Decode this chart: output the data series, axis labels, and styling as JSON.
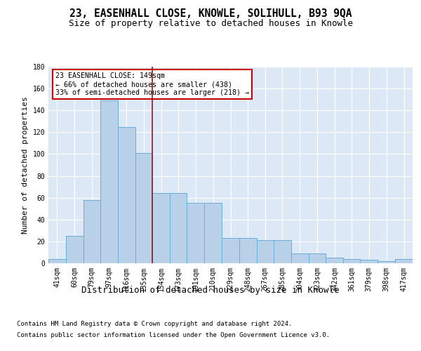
{
  "title": "23, EASENHALL CLOSE, KNOWLE, SOLIHULL, B93 9QA",
  "subtitle": "Size of property relative to detached houses in Knowle",
  "xlabel": "Distribution of detached houses by size in Knowle",
  "ylabel": "Number of detached properties",
  "categories": [
    "41sqm",
    "60sqm",
    "79sqm",
    "97sqm",
    "116sqm",
    "135sqm",
    "154sqm",
    "173sqm",
    "191sqm",
    "210sqm",
    "229sqm",
    "248sqm",
    "267sqm",
    "285sqm",
    "304sqm",
    "323sqm",
    "342sqm",
    "361sqm",
    "379sqm",
    "398sqm",
    "417sqm"
  ],
  "bar_heights": [
    4,
    25,
    58,
    149,
    125,
    101,
    64,
    64,
    55,
    55,
    23,
    23,
    21,
    21,
    9,
    9,
    5,
    4,
    3,
    2,
    4
  ],
  "bar_bins": [
    41,
    60,
    79,
    97,
    116,
    135,
    154,
    173,
    191,
    210,
    229,
    248,
    267,
    285,
    304,
    323,
    342,
    361,
    379,
    398,
    417,
    436
  ],
  "bar_color": "#b8d0e8",
  "bar_edge_color": "#6aaed6",
  "plot_bg_color": "#dce8f5",
  "grid_color": "#ffffff",
  "vline_x": 154,
  "vline_color": "#8b1a1a",
  "annotation_line1": "23 EASENHALL CLOSE: 149sqm",
  "annotation_line2": "← 66% of detached houses are smaller (438)",
  "annotation_line3": "33% of semi-detached houses are larger (218) →",
  "annotation_box_edge_color": "#cc0000",
  "ylim": [
    0,
    180
  ],
  "yticks": [
    0,
    20,
    40,
    60,
    80,
    100,
    120,
    140,
    160,
    180
  ],
  "title_fontsize": 10.5,
  "subtitle_fontsize": 9,
  "xlabel_fontsize": 9,
  "ylabel_fontsize": 8,
  "tick_fontsize": 7,
  "footer_fontsize": 6.5,
  "footer_line1": "Contains HM Land Registry data © Crown copyright and database right 2024.",
  "footer_line2": "Contains public sector information licensed under the Open Government Licence v3.0."
}
